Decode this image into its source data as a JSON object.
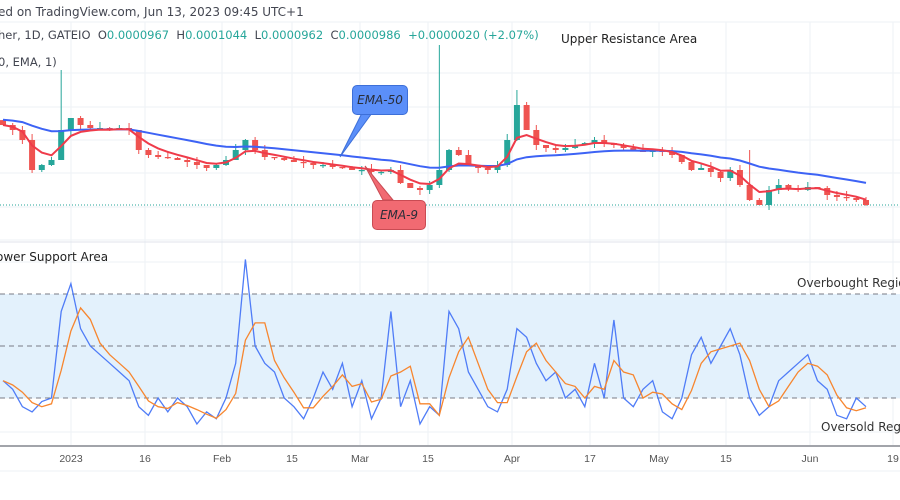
{
  "header": {
    "published": "ed on TradingView.com, Jun 13, 2023 09:45 UTC+1",
    "symbol": "her, 1D, GATEIO",
    "ohlc": {
      "o_label": "O",
      "o": "0.0000967",
      "h_label": "H",
      "h": "0.0001044",
      "l_label": "L",
      "l": "0.0000962",
      "c_label": "C",
      "c": "0.0000986",
      "change": "+0.0000020 (+2.07%)"
    },
    "indicator": "0, EMA, 1)"
  },
  "annotations": {
    "upper": "Upper Resistance Area",
    "lower": "ower Support Area",
    "overbought": "Overbought Region",
    "oversold": "Oversold Region",
    "ema50": "EMA-50",
    "ema9": "EMA-9"
  },
  "colors": {
    "up": "#26a69a",
    "down": "#ef5350",
    "ema50": "#3d63f5",
    "ema9": "#ef3b4a",
    "k": "#4f7cf7",
    "d": "#f7862f",
    "band": "#e3f1fc",
    "ema50_callout": "#5b8ff9",
    "ema9_callout": "#f16a72"
  },
  "chart_data": [
    {
      "type": "candlestick",
      "interval": "1D",
      "last_close": 9.86e-05,
      "closes": [
        0.0001466,
        0.0001436,
        0.0001376,
        0.0001196,
        0.0001226,
        0.0001256,
        0.0001436,
        0.0001508,
        0.0001466,
        0.0001448,
        0.0001448,
        0.0001436,
        0.0001448,
        0.0001436,
        0.0001316,
        0.0001286,
        0.0001274,
        0.0001268,
        0.0001256,
        0.0001244,
        0.0001226,
        0.0001208,
        0.0001226,
        0.0001256,
        0.0001316,
        0.0001376,
        0.0001316,
        0.0001274,
        0.0001268,
        0.0001256,
        0.0001244,
        0.0001238,
        0.0001226,
        0.0001226,
        0.0001214,
        0.0001208,
        0.0001196,
        0.0001196,
        0.0001184,
        0.0001184,
        0.0001196,
        0.0001118,
        0.0001088,
        0.0001076,
        0.0001106,
        0.0001196,
        0.0001316,
        0.0001286,
        0.0001226,
        0.0001208,
        0.0001196,
        0.0001226,
        0.0001376,
        0.0001586,
        0.0001436,
        0.0001346,
        0.0001328,
        0.0001316,
        0.0001328,
        0.0001346,
        0.0001358,
        0.0001376,
        0.0001358,
        0.0001346,
        0.0001328,
        0.0001316,
        0.0001304,
        0.0001316,
        0.0001304,
        0.0001286,
        0.0001244,
        0.0001196,
        0.0001208,
        0.0001184,
        0.0001148,
        0.0001196,
        0.0001106,
        0.0001016,
        9.86e-05,
        0.0001076,
        0.0001106,
        0.0001088,
        0.0001076,
        0.0001094,
        0.0001088,
        0.0001046,
        0.0001034,
        0.0001028,
        0.0001016,
        9.86e-05
      ],
      "spike_highs": {
        "6": 0.0001796,
        "53": 0.0001676,
        "45": 0.0001946,
        "77": 0.0001316
      },
      "overlays": [
        "EMA-50",
        "EMA-9"
      ]
    },
    {
      "type": "line",
      "overbought": 80,
      "oversold": 20,
      "middle": 50,
      "ylim": [
        0,
        100
      ],
      "k": [
        30,
        25,
        15,
        12,
        18,
        20,
        70,
        86,
        60,
        50,
        45,
        40,
        35,
        30,
        15,
        10,
        20,
        12,
        20,
        15,
        5,
        12,
        8,
        20,
        40,
        100,
        50,
        40,
        35,
        20,
        15,
        8,
        20,
        35,
        25,
        40,
        15,
        30,
        8,
        20,
        70,
        15,
        30,
        5,
        15,
        10,
        70,
        60,
        35,
        25,
        15,
        12,
        25,
        60,
        55,
        40,
        30,
        35,
        20,
        25,
        15,
        40,
        20,
        65,
        20,
        15,
        25,
        30,
        12,
        8,
        20,
        45,
        55,
        40,
        50,
        60,
        45,
        20,
        10,
        15,
        30,
        35,
        40,
        45,
        30,
        25,
        10,
        8,
        20,
        15
      ]
    }
  ],
  "x_ticks": [
    "2023",
    "16",
    "Feb",
    "15",
    "Mar",
    "15",
    "Apr",
    "17",
    "May",
    "15",
    "Jun",
    "19"
  ]
}
